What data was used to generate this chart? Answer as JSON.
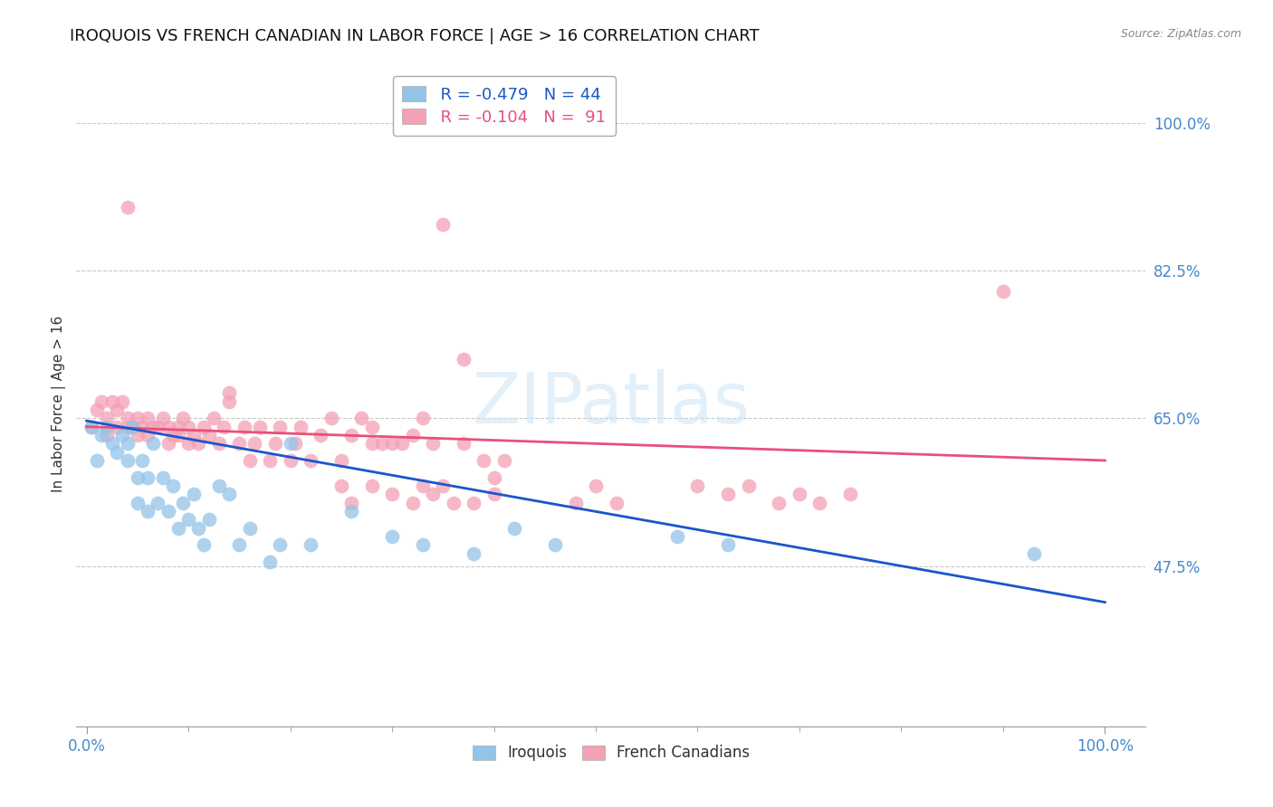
{
  "title": "IROQUOIS VS FRENCH CANADIAN IN LABOR FORCE | AGE > 16 CORRELATION CHART",
  "source": "Source: ZipAtlas.com",
  "ylabel": "In Labor Force | Age > 16",
  "xlim": [
    -0.01,
    1.04
  ],
  "ylim": [
    0.285,
    1.05
  ],
  "grid_color": "#c8c8c8",
  "background_color": "#ffffff",
  "watermark": "ZIPatlas",
  "series": [
    {
      "name": "Iroquois",
      "color": "#93c4e8",
      "R": -0.479,
      "N": 44,
      "x": [
        0.005,
        0.01,
        0.015,
        0.02,
        0.025,
        0.03,
        0.035,
        0.04,
        0.04,
        0.045,
        0.05,
        0.05,
        0.055,
        0.06,
        0.06,
        0.065,
        0.07,
        0.075,
        0.08,
        0.085,
        0.09,
        0.095,
        0.1,
        0.105,
        0.11,
        0.115,
        0.12,
        0.13,
        0.14,
        0.15,
        0.16,
        0.18,
        0.19,
        0.2,
        0.22,
        0.26,
        0.3,
        0.33,
        0.38,
        0.42,
        0.46,
        0.58,
        0.63,
        0.93
      ],
      "y": [
        0.64,
        0.6,
        0.63,
        0.64,
        0.62,
        0.61,
        0.63,
        0.6,
        0.62,
        0.64,
        0.55,
        0.58,
        0.6,
        0.54,
        0.58,
        0.62,
        0.55,
        0.58,
        0.54,
        0.57,
        0.52,
        0.55,
        0.53,
        0.56,
        0.52,
        0.5,
        0.53,
        0.57,
        0.56,
        0.5,
        0.52,
        0.48,
        0.5,
        0.62,
        0.5,
        0.54,
        0.51,
        0.5,
        0.49,
        0.52,
        0.5,
        0.51,
        0.5,
        0.49
      ],
      "line_color": "#1a56cc",
      "line_x": [
        0.0,
        1.0
      ],
      "line_y": [
        0.647,
        0.432
      ]
    },
    {
      "name": "French Canadians",
      "color": "#f4a0b5",
      "R": -0.104,
      "N": 91,
      "x": [
        0.005,
        0.01,
        0.015,
        0.02,
        0.02,
        0.025,
        0.03,
        0.03,
        0.035,
        0.04,
        0.04,
        0.04,
        0.045,
        0.05,
        0.05,
        0.055,
        0.06,
        0.06,
        0.065,
        0.07,
        0.075,
        0.08,
        0.08,
        0.085,
        0.09,
        0.09,
        0.095,
        0.1,
        0.1,
        0.105,
        0.11,
        0.115,
        0.12,
        0.125,
        0.13,
        0.135,
        0.14,
        0.14,
        0.15,
        0.155,
        0.16,
        0.165,
        0.17,
        0.18,
        0.185,
        0.19,
        0.2,
        0.205,
        0.21,
        0.22,
        0.23,
        0.24,
        0.25,
        0.26,
        0.27,
        0.28,
        0.28,
        0.29,
        0.3,
        0.31,
        0.32,
        0.33,
        0.34,
        0.35,
        0.37,
        0.37,
        0.39,
        0.4,
        0.41,
        0.4,
        0.38,
        0.35,
        0.36,
        0.34,
        0.33,
        0.32,
        0.3,
        0.28,
        0.26,
        0.25,
        0.48,
        0.5,
        0.52,
        0.6,
        0.63,
        0.65,
        0.68,
        0.7,
        0.72,
        0.75,
        0.9
      ],
      "y": [
        0.64,
        0.66,
        0.67,
        0.63,
        0.65,
        0.67,
        0.64,
        0.66,
        0.67,
        0.64,
        0.65,
        0.9,
        0.64,
        0.63,
        0.65,
        0.64,
        0.63,
        0.65,
        0.64,
        0.64,
        0.65,
        0.62,
        0.64,
        0.63,
        0.63,
        0.64,
        0.65,
        0.62,
        0.64,
        0.63,
        0.62,
        0.64,
        0.63,
        0.65,
        0.62,
        0.64,
        0.67,
        0.68,
        0.62,
        0.64,
        0.6,
        0.62,
        0.64,
        0.6,
        0.62,
        0.64,
        0.6,
        0.62,
        0.64,
        0.6,
        0.63,
        0.65,
        0.6,
        0.63,
        0.65,
        0.62,
        0.64,
        0.62,
        0.62,
        0.62,
        0.63,
        0.65,
        0.62,
        0.88,
        0.62,
        0.72,
        0.6,
        0.58,
        0.6,
        0.56,
        0.55,
        0.57,
        0.55,
        0.56,
        0.57,
        0.55,
        0.56,
        0.57,
        0.55,
        0.57,
        0.55,
        0.57,
        0.55,
        0.57,
        0.56,
        0.57,
        0.55,
        0.56,
        0.55,
        0.56,
        0.8
      ],
      "line_color": "#e8507a",
      "line_x": [
        0.0,
        1.0
      ],
      "line_y": [
        0.64,
        0.6
      ]
    }
  ],
  "legend_R_N": [
    {
      "R": "R = -0.479",
      "N": "N = 44"
    },
    {
      "R": "R = -0.104",
      "N": "N =  91"
    }
  ],
  "ytick_vals": [
    0.475,
    0.65,
    0.825,
    1.0
  ],
  "ytick_labels": [
    "47.5%",
    "65.0%",
    "82.5%",
    "100.0%"
  ],
  "ytick_color": "#4488cc",
  "xtick_color": "#4488cc",
  "title_fontsize": 13,
  "tick_fontsize": 12,
  "legend_fontsize": 13,
  "source_text": "Source: ZipAtlas.com"
}
